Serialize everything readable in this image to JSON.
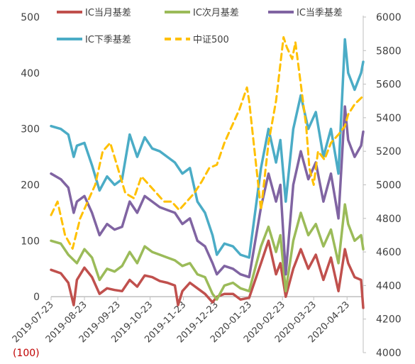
{
  "chart_data": {
    "type": "line",
    "x_ticks": [
      "2019-07-23",
      "2019-08-23",
      "2019-09-23",
      "2019-10-23",
      "2019-11-23",
      "2019-12-23",
      "2020-01-23",
      "2020-02-23",
      "2020-03-23",
      "2020-04-23"
    ],
    "x_start": "2019-07-23",
    "x_end": "2020-05-08",
    "y_left_ticks": [
      "(100)",
      "0",
      "100",
      "200",
      "300",
      "400",
      "500"
    ],
    "y_left_range": [
      -100,
      500
    ],
    "y_right_ticks": [
      "4000",
      "4200",
      "4400",
      "4600",
      "4800",
      "5000",
      "5200",
      "5400",
      "5600",
      "5800",
      "6000"
    ],
    "y_right_range": [
      4000,
      6000
    ],
    "legend_position": "top",
    "grid": false,
    "series": [
      {
        "name": "IC当月基差",
        "axis": "left",
        "color": "#c0504d",
        "dash": false,
        "points": [
          [
            "2019-07-23",
            48
          ],
          [
            "2019-08-01",
            42
          ],
          [
            "2019-08-08",
            25
          ],
          [
            "2019-08-13",
            -15
          ],
          [
            "2019-08-16",
            30
          ],
          [
            "2019-08-23",
            52
          ],
          [
            "2019-08-30",
            35
          ],
          [
            "2019-09-06",
            5
          ],
          [
            "2019-09-13",
            15
          ],
          [
            "2019-09-20",
            12
          ],
          [
            "2019-09-27",
            10
          ],
          [
            "2019-10-04",
            30
          ],
          [
            "2019-10-11",
            18
          ],
          [
            "2019-10-18",
            38
          ],
          [
            "2019-10-25",
            35
          ],
          [
            "2019-11-01",
            28
          ],
          [
            "2019-11-08",
            25
          ],
          [
            "2019-11-15",
            20
          ],
          [
            "2019-11-18",
            -15
          ],
          [
            "2019-11-22",
            10
          ],
          [
            "2019-11-29",
            25
          ],
          [
            "2019-12-06",
            15
          ],
          [
            "2019-12-13",
            5
          ],
          [
            "2019-12-20",
            -10
          ],
          [
            "2019-12-24",
            0
          ],
          [
            "2019-12-31",
            5
          ],
          [
            "2020-01-08",
            5
          ],
          [
            "2020-01-15",
            -5
          ],
          [
            "2020-01-23",
            -2
          ],
          [
            "2020-02-03",
            60
          ],
          [
            "2020-02-10",
            100
          ],
          [
            "2020-02-17",
            40
          ],
          [
            "2020-02-21",
            60
          ],
          [
            "2020-02-26",
            0
          ],
          [
            "2020-03-04",
            50
          ],
          [
            "2020-03-11",
            85
          ],
          [
            "2020-03-18",
            50
          ],
          [
            "2020-03-25",
            75
          ],
          [
            "2020-04-01",
            30
          ],
          [
            "2020-04-08",
            70
          ],
          [
            "2020-04-15",
            10
          ],
          [
            "2020-04-21",
            85
          ],
          [
            "2020-04-24",
            60
          ],
          [
            "2020-04-30",
            35
          ],
          [
            "2020-05-06",
            30
          ],
          [
            "2020-05-08",
            -20
          ]
        ]
      },
      {
        "name": "IC次月基差",
        "axis": "left",
        "color": "#9bbb59",
        "dash": false,
        "points": [
          [
            "2019-07-23",
            100
          ],
          [
            "2019-08-01",
            95
          ],
          [
            "2019-08-08",
            75
          ],
          [
            "2019-08-16",
            60
          ],
          [
            "2019-08-23",
            85
          ],
          [
            "2019-08-30",
            70
          ],
          [
            "2019-09-06",
            30
          ],
          [
            "2019-09-13",
            50
          ],
          [
            "2019-09-20",
            45
          ],
          [
            "2019-09-27",
            55
          ],
          [
            "2019-10-04",
            80
          ],
          [
            "2019-10-11",
            60
          ],
          [
            "2019-10-18",
            90
          ],
          [
            "2019-10-25",
            80
          ],
          [
            "2019-11-01",
            75
          ],
          [
            "2019-11-08",
            70
          ],
          [
            "2019-11-15",
            65
          ],
          [
            "2019-11-22",
            55
          ],
          [
            "2019-11-29",
            60
          ],
          [
            "2019-12-06",
            40
          ],
          [
            "2019-12-13",
            35
          ],
          [
            "2019-12-20",
            5
          ],
          [
            "2019-12-24",
            -5
          ],
          [
            "2019-12-31",
            20
          ],
          [
            "2020-01-08",
            25
          ],
          [
            "2020-01-15",
            15
          ],
          [
            "2020-01-23",
            10
          ],
          [
            "2020-02-03",
            90
          ],
          [
            "2020-02-10",
            125
          ],
          [
            "2020-02-17",
            80
          ],
          [
            "2020-02-21",
            110
          ],
          [
            "2020-02-26",
            10
          ],
          [
            "2020-03-04",
            100
          ],
          [
            "2020-03-11",
            150
          ],
          [
            "2020-03-18",
            110
          ],
          [
            "2020-03-25",
            130
          ],
          [
            "2020-04-01",
            90
          ],
          [
            "2020-04-08",
            120
          ],
          [
            "2020-04-15",
            60
          ],
          [
            "2020-04-21",
            165
          ],
          [
            "2020-04-24",
            130
          ],
          [
            "2020-04-30",
            100
          ],
          [
            "2020-05-06",
            110
          ],
          [
            "2020-05-08",
            85
          ]
        ]
      },
      {
        "name": "IC当季基差",
        "axis": "left",
        "color": "#8064a2",
        "dash": false,
        "points": [
          [
            "2019-07-23",
            220
          ],
          [
            "2019-08-01",
            210
          ],
          [
            "2019-08-08",
            195
          ],
          [
            "2019-08-13",
            150
          ],
          [
            "2019-08-16",
            170
          ],
          [
            "2019-08-23",
            180
          ],
          [
            "2019-08-30",
            150
          ],
          [
            "2019-09-06",
            110
          ],
          [
            "2019-09-13",
            130
          ],
          [
            "2019-09-20",
            120
          ],
          [
            "2019-09-27",
            125
          ],
          [
            "2019-10-04",
            170
          ],
          [
            "2019-10-11",
            150
          ],
          [
            "2019-10-18",
            180
          ],
          [
            "2019-10-25",
            170
          ],
          [
            "2019-11-01",
            160
          ],
          [
            "2019-11-08",
            155
          ],
          [
            "2019-11-15",
            150
          ],
          [
            "2019-11-22",
            130
          ],
          [
            "2019-11-29",
            140
          ],
          [
            "2019-12-06",
            100
          ],
          [
            "2019-12-13",
            90
          ],
          [
            "2019-12-20",
            60
          ],
          [
            "2019-12-24",
            40
          ],
          [
            "2019-12-31",
            55
          ],
          [
            "2020-01-08",
            50
          ],
          [
            "2020-01-15",
            40
          ],
          [
            "2020-01-23",
            35
          ],
          [
            "2020-02-03",
            160
          ],
          [
            "2020-02-10",
            220
          ],
          [
            "2020-02-17",
            170
          ],
          [
            "2020-02-21",
            200
          ],
          [
            "2020-02-26",
            40
          ],
          [
            "2020-03-04",
            200
          ],
          [
            "2020-03-11",
            260
          ],
          [
            "2020-03-18",
            210
          ],
          [
            "2020-03-25",
            240
          ],
          [
            "2020-04-01",
            170
          ],
          [
            "2020-04-08",
            220
          ],
          [
            "2020-04-15",
            140
          ],
          [
            "2020-04-21",
            340
          ],
          [
            "2020-04-24",
            280
          ],
          [
            "2020-04-30",
            250
          ],
          [
            "2020-05-06",
            270
          ],
          [
            "2020-05-08",
            295
          ]
        ]
      },
      {
        "name": "IC下季基差",
        "axis": "left",
        "color": "#4bacc6",
        "dash": false,
        "points": [
          [
            "2019-07-23",
            305
          ],
          [
            "2019-08-01",
            300
          ],
          [
            "2019-08-08",
            290
          ],
          [
            "2019-08-13",
            250
          ],
          [
            "2019-08-16",
            270
          ],
          [
            "2019-08-23",
            275
          ],
          [
            "2019-08-30",
            235
          ],
          [
            "2019-09-06",
            190
          ],
          [
            "2019-09-13",
            215
          ],
          [
            "2019-09-20",
            200
          ],
          [
            "2019-09-27",
            210
          ],
          [
            "2019-10-04",
            290
          ],
          [
            "2019-10-11",
            250
          ],
          [
            "2019-10-18",
            285
          ],
          [
            "2019-10-25",
            265
          ],
          [
            "2019-11-01",
            260
          ],
          [
            "2019-11-08",
            250
          ],
          [
            "2019-11-15",
            240
          ],
          [
            "2019-11-22",
            220
          ],
          [
            "2019-11-29",
            230
          ],
          [
            "2019-12-06",
            170
          ],
          [
            "2019-12-13",
            150
          ],
          [
            "2019-12-20",
            110
          ],
          [
            "2019-12-24",
            75
          ],
          [
            "2019-12-31",
            95
          ],
          [
            "2020-01-08",
            90
          ],
          [
            "2020-01-15",
            75
          ],
          [
            "2020-01-23",
            70
          ],
          [
            "2020-02-03",
            230
          ],
          [
            "2020-02-10",
            300
          ],
          [
            "2020-02-17",
            240
          ],
          [
            "2020-02-21",
            280
          ],
          [
            "2020-02-26",
            170
          ],
          [
            "2020-03-04",
            300
          ],
          [
            "2020-03-11",
            360
          ],
          [
            "2020-03-18",
            300
          ],
          [
            "2020-03-25",
            330
          ],
          [
            "2020-04-01",
            250
          ],
          [
            "2020-04-08",
            300
          ],
          [
            "2020-04-15",
            220
          ],
          [
            "2020-04-21",
            460
          ],
          [
            "2020-04-24",
            400
          ],
          [
            "2020-04-30",
            370
          ],
          [
            "2020-05-06",
            400
          ],
          [
            "2020-05-08",
            420
          ]
        ]
      },
      {
        "name": "中证500",
        "axis": "right",
        "color": "#ffc000",
        "dash": true,
        "points": [
          [
            "2019-07-23",
            4820
          ],
          [
            "2019-07-29",
            4900
          ],
          [
            "2019-08-05",
            4700
          ],
          [
            "2019-08-12",
            4620
          ],
          [
            "2019-08-19",
            4800
          ],
          [
            "2019-08-26",
            4900
          ],
          [
            "2019-09-02",
            5000
          ],
          [
            "2019-09-09",
            5200
          ],
          [
            "2019-09-16",
            5250
          ],
          [
            "2019-09-23",
            5100
          ],
          [
            "2019-09-30",
            4950
          ],
          [
            "2019-10-08",
            4920
          ],
          [
            "2019-10-15",
            5050
          ],
          [
            "2019-10-22",
            5000
          ],
          [
            "2019-10-29",
            4950
          ],
          [
            "2019-11-05",
            4900
          ],
          [
            "2019-11-12",
            4900
          ],
          [
            "2019-11-19",
            4850
          ],
          [
            "2019-11-26",
            4900
          ],
          [
            "2019-12-03",
            4950
          ],
          [
            "2019-12-10",
            5020
          ],
          [
            "2019-12-17",
            5100
          ],
          [
            "2019-12-24",
            5120
          ],
          [
            "2019-12-31",
            5250
          ],
          [
            "2020-01-07",
            5350
          ],
          [
            "2020-01-14",
            5450
          ],
          [
            "2020-01-21",
            5580
          ],
          [
            "2020-01-23",
            5500
          ],
          [
            "2020-02-03",
            4850
          ],
          [
            "2020-02-10",
            5250
          ],
          [
            "2020-02-17",
            5500
          ],
          [
            "2020-02-24",
            5880
          ],
          [
            "2020-02-27",
            5820
          ],
          [
            "2020-03-03",
            5750
          ],
          [
            "2020-03-06",
            5850
          ],
          [
            "2020-03-10",
            5650
          ],
          [
            "2020-03-16",
            5350
          ],
          [
            "2020-03-19",
            5100
          ],
          [
            "2020-03-23",
            5000
          ],
          [
            "2020-03-27",
            5200
          ],
          [
            "2020-04-02",
            5150
          ],
          [
            "2020-04-08",
            5250
          ],
          [
            "2020-04-15",
            5300
          ],
          [
            "2020-04-21",
            5350
          ],
          [
            "2020-04-24",
            5420
          ],
          [
            "2020-04-30",
            5480
          ],
          [
            "2020-05-08",
            5530
          ]
        ]
      }
    ]
  }
}
